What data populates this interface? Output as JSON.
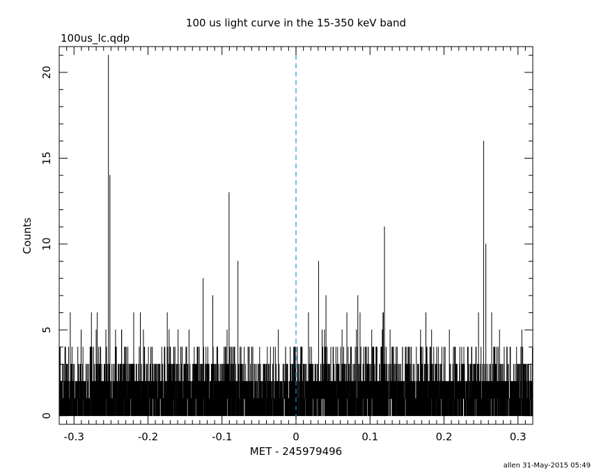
{
  "chart_data": {
    "type": "bar",
    "title": "100 us light curve in the 15-350 keV band",
    "subtitle": "100us_lc.qdp",
    "xlabel": "MET - 245979496",
    "ylabel": "Counts",
    "footer": "allen 31-May-2015 05:49",
    "xlim": [
      -0.32,
      0.32
    ],
    "ylim": [
      -0.5,
      21.5
    ],
    "x_ticks": [
      -0.3,
      -0.2,
      -0.1,
      0,
      0.1,
      0.2,
      0.3
    ],
    "x_tick_labels": [
      "-0.3",
      "-0.2",
      "-0.1",
      "0",
      "0.1",
      "0.2",
      "0.3"
    ],
    "y_ticks": [
      0,
      5,
      10,
      15,
      20
    ],
    "y_tick_labels": [
      "0",
      "5",
      "10",
      "15",
      "20"
    ],
    "bin_width": 0.0001,
    "trigger_line_x": 0,
    "colors": {
      "series": "#000000",
      "trigger_line": "#1f8fbf"
    },
    "notable_bins": [
      {
        "x": -0.2535,
        "y": 21
      },
      {
        "x": -0.2515,
        "y": 14
      },
      {
        "x": -0.1255,
        "y": 8
      },
      {
        "x": -0.1125,
        "y": 7
      },
      {
        "x": -0.0905,
        "y": 13
      },
      {
        "x": -0.0785,
        "y": 9
      },
      {
        "x": 0.0305,
        "y": 9
      },
      {
        "x": 0.0405,
        "y": 7
      },
      {
        "x": 0.0835,
        "y": 7
      },
      {
        "x": 0.1175,
        "y": 6
      },
      {
        "x": 0.1195,
        "y": 11
      },
      {
        "x": 0.2535,
        "y": 16
      },
      {
        "x": 0.2565,
        "y": 10
      }
    ],
    "background_level": {
      "typical_max": 2,
      "frequent_peaks": [
        3,
        4
      ],
      "occasional_peaks": [
        5,
        6
      ]
    }
  }
}
